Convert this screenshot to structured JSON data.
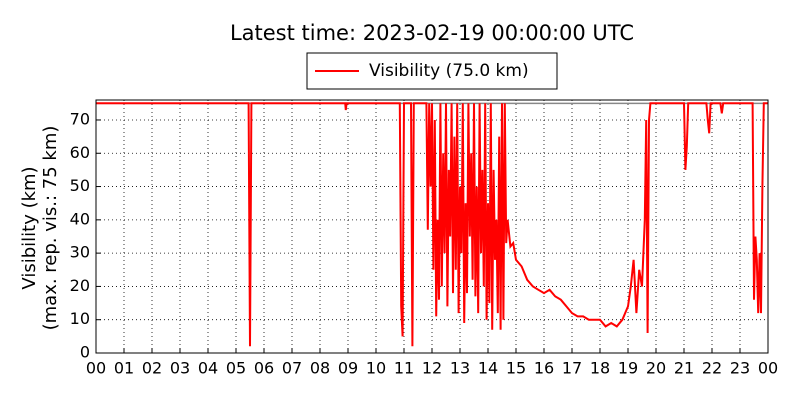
{
  "chart_data": {
    "type": "line",
    "title": "Latest time: 2023-02-19 00:00:00 UTC",
    "ylabel": [
      "Visibility (km)",
      "(max. rep. vis.: 75 km)"
    ],
    "reference_line": {
      "value": 75,
      "color": "#888888"
    },
    "grid": true,
    "legend": "upper center",
    "xlim": [
      0,
      24
    ],
    "xticks": [
      {
        "value": 0,
        "label": "00"
      },
      {
        "value": 1,
        "label": "01"
      },
      {
        "value": 2,
        "label": "02"
      },
      {
        "value": 3,
        "label": "03"
      },
      {
        "value": 4,
        "label": "04"
      },
      {
        "value": 5,
        "label": "05"
      },
      {
        "value": 6,
        "label": "06"
      },
      {
        "value": 7,
        "label": "07"
      },
      {
        "value": 8,
        "label": "08"
      },
      {
        "value": 9,
        "label": "09"
      },
      {
        "value": 10,
        "label": "10"
      },
      {
        "value": 11,
        "label": "11"
      },
      {
        "value": 12,
        "label": "12"
      },
      {
        "value": 13,
        "label": "13"
      },
      {
        "value": 14,
        "label": "14"
      },
      {
        "value": 15,
        "label": "15"
      },
      {
        "value": 16,
        "label": "16"
      },
      {
        "value": 17,
        "label": "17"
      },
      {
        "value": 18,
        "label": "18"
      },
      {
        "value": 19,
        "label": "19"
      },
      {
        "value": 20,
        "label": "20"
      },
      {
        "value": 21,
        "label": "21"
      },
      {
        "value": 22,
        "label": "22"
      },
      {
        "value": 23,
        "label": "23"
      },
      {
        "value": 24,
        "label": "00"
      }
    ],
    "ylim": [
      0,
      76
    ],
    "yticks": [
      0,
      10,
      20,
      30,
      40,
      50,
      60,
      70
    ],
    "x": [
      0,
      5.45,
      5.5,
      5.55,
      8.9,
      8.92,
      8.95,
      10.85,
      10.9,
      10.95,
      11.0,
      11.25,
      11.3,
      11.35,
      11.8,
      11.85,
      11.9,
      11.95,
      12.0,
      12.05,
      12.1,
      12.15,
      12.2,
      12.25,
      12.3,
      12.35,
      12.4,
      12.45,
      12.5,
      12.55,
      12.6,
      12.65,
      12.7,
      12.75,
      12.8,
      12.85,
      12.9,
      12.95,
      13.0,
      13.05,
      13.1,
      13.15,
      13.2,
      13.25,
      13.3,
      13.35,
      13.4,
      13.45,
      13.5,
      13.55,
      13.6,
      13.65,
      13.7,
      13.75,
      13.8,
      13.85,
      13.9,
      13.95,
      14.0,
      14.05,
      14.1,
      14.15,
      14.2,
      14.25,
      14.3,
      14.35,
      14.4,
      14.45,
      14.5,
      14.55,
      14.6,
      14.65,
      14.7,
      14.8,
      14.9,
      15.0,
      15.2,
      15.4,
      15.6,
      15.8,
      16.0,
      16.2,
      16.4,
      16.6,
      16.8,
      17.0,
      17.2,
      17.4,
      17.6,
      17.8,
      18.0,
      18.2,
      18.4,
      18.6,
      18.8,
      19.0,
      19.1,
      19.2,
      19.3,
      19.4,
      19.5,
      19.6,
      19.65,
      19.7,
      19.75,
      19.8,
      21.0,
      21.05,
      21.1,
      21.15,
      21.8,
      21.85,
      21.9,
      21.95,
      22.3,
      22.35,
      22.4,
      23.45,
      23.5,
      23.55,
      23.6,
      23.65,
      23.7,
      23.75,
      23.8,
      23.85,
      24
    ],
    "series": [
      {
        "name": "Visibility (75.0 km)",
        "color": "#ff0000",
        "values": [
          75,
          75,
          2,
          75,
          75,
          73,
          75,
          75,
          14,
          5,
          75,
          75,
          2,
          75,
          75,
          37,
          75,
          50,
          75,
          25,
          70,
          11,
          40,
          16,
          75,
          20,
          60,
          30,
          75,
          14,
          55,
          35,
          75,
          18,
          65,
          25,
          75,
          12,
          50,
          30,
          75,
          9,
          45,
          18,
          75,
          35,
          60,
          22,
          75,
          17,
          50,
          12,
          75,
          30,
          55,
          20,
          75,
          10,
          45,
          15,
          75,
          7,
          55,
          28,
          40,
          12,
          65,
          7,
          75,
          10,
          75,
          33,
          40,
          32,
          33,
          28,
          26,
          22,
          20,
          19,
          18,
          19,
          17,
          16,
          14,
          12,
          11,
          11,
          10,
          10,
          10,
          8,
          9,
          8,
          10,
          14,
          20,
          28,
          12,
          25,
          20,
          40,
          70,
          6,
          70,
          75,
          75,
          55,
          62,
          75,
          75,
          70,
          66,
          75,
          75,
          72,
          75,
          75,
          16,
          35,
          28,
          12,
          30,
          12,
          50,
          75,
          75
        ]
      }
    ]
  }
}
